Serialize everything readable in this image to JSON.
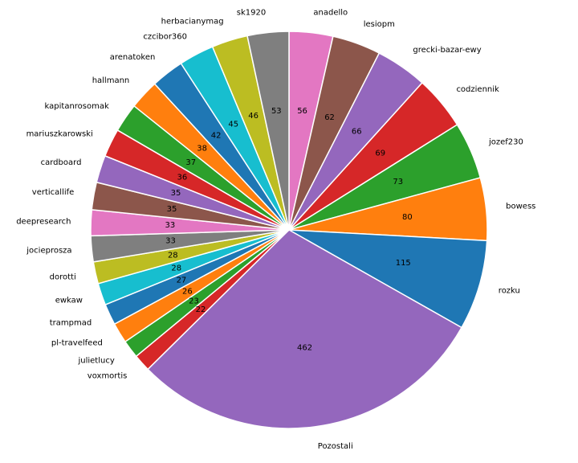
{
  "chart_data": {
    "type": "pie",
    "start_angle_deg": 90,
    "direction": "clockwise",
    "grid": false,
    "legend": "none",
    "slices": [
      {
        "label": "anadello",
        "value": 56,
        "color": "#e377c2"
      },
      {
        "label": "lesiopm",
        "value": 62,
        "color": "#8c564b"
      },
      {
        "label": "grecki-bazar-ewy",
        "value": 66,
        "color": "#9467bd"
      },
      {
        "label": "codziennik",
        "value": 69,
        "color": "#d62728"
      },
      {
        "label": "jozef230",
        "value": 73,
        "color": "#2ca02c"
      },
      {
        "label": "bowess",
        "value": 80,
        "color": "#ff7f0e"
      },
      {
        "label": "rozku",
        "value": 115,
        "color": "#1f77b4"
      },
      {
        "label": "Pozostali",
        "value": 462,
        "color": "#9467bd"
      },
      {
        "label": "voxmortis",
        "value": 22,
        "color": "#d62728"
      },
      {
        "label": "julietlucy",
        "value": 23,
        "color": "#2ca02c"
      },
      {
        "label": "pl-travelfeed",
        "value": 26,
        "color": "#ff7f0e"
      },
      {
        "label": "trampmad",
        "value": 27,
        "color": "#1f77b4"
      },
      {
        "label": "ewkaw",
        "value": 28,
        "color": "#17becf"
      },
      {
        "label": "dorotti",
        "value": 28,
        "color": "#bcbd22"
      },
      {
        "label": "jocieprosza",
        "value": 33,
        "color": "#7f7f7f"
      },
      {
        "label": "deepresearch",
        "value": 33,
        "color": "#e377c2"
      },
      {
        "label": "verticallife",
        "value": 35,
        "color": "#8c564b"
      },
      {
        "label": "cardboard",
        "value": 35,
        "color": "#9467bd"
      },
      {
        "label": "mariuszkarowski",
        "value": 36,
        "color": "#d62728"
      },
      {
        "label": "kapitanrosomak",
        "value": 37,
        "color": "#2ca02c"
      },
      {
        "label": "hallmann",
        "value": 38,
        "color": "#ff7f0e"
      },
      {
        "label": "arenatoken",
        "value": 42,
        "color": "#1f77b4"
      },
      {
        "label": "czcibor360",
        "value": 45,
        "color": "#17becf"
      },
      {
        "label": "herbacianymag",
        "value": 46,
        "color": "#bcbd22"
      },
      {
        "label": "sk1920",
        "value": 53,
        "color": "#7f7f7f"
      }
    ]
  }
}
